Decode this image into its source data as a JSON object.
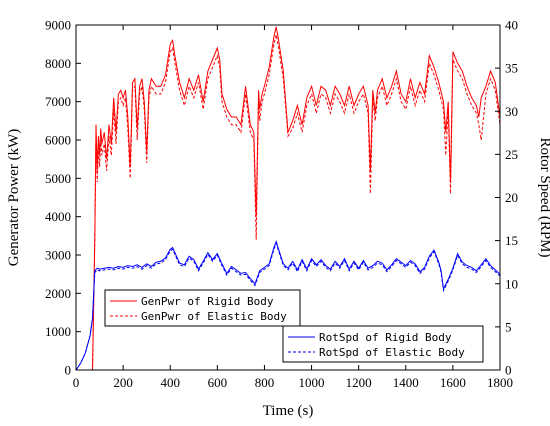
{
  "chart_data": {
    "type": "line",
    "xlabel": "Time (s)",
    "ylabel_left": "Generator Power (kW)",
    "ylabel_right": "Rotor Speed (RPM)",
    "xlim": [
      0,
      1800
    ],
    "ylim_left": [
      0,
      9000
    ],
    "ylim_right": [
      0,
      40
    ],
    "xticks": [
      "0",
      "200",
      "400",
      "600",
      "800",
      "1000",
      "1200",
      "1400",
      "1600",
      "1800"
    ],
    "yticks_left": [
      "0",
      "1000",
      "2000",
      "3000",
      "4000",
      "5000",
      "6000",
      "7000",
      "8000",
      "9000"
    ],
    "yticks_right": [
      "0",
      "5",
      "10",
      "15",
      "20",
      "25",
      "30",
      "35",
      "40"
    ],
    "grid": false,
    "colors": {
      "genpwr": "#ff0000",
      "rotspd": "#0000ff"
    },
    "legends": [
      {
        "position": "center-left",
        "entries": [
          "GenPwr of Rigid Body",
          "GenPwr of Elastic Body"
        ]
      },
      {
        "position": "bottom-right",
        "entries": [
          "RotSpd of Rigid Body",
          "RotSpd of Elastic Body"
        ]
      }
    ],
    "series": [
      {
        "name": "GenPwr of Rigid Body",
        "axis": "left",
        "color": "#ff0000",
        "dash": "solid",
        "x": [
          0,
          60,
          70,
          80,
          85,
          90,
          95,
          100,
          105,
          110,
          120,
          130,
          140,
          150,
          160,
          170,
          180,
          190,
          200,
          210,
          220,
          230,
          235,
          240,
          250,
          260,
          270,
          280,
          290,
          300,
          310,
          320,
          340,
          360,
          380,
          400,
          410,
          420,
          440,
          460,
          480,
          500,
          520,
          540,
          560,
          580,
          600,
          610,
          620,
          640,
          660,
          680,
          700,
          720,
          740,
          755,
          765,
          775,
          780,
          790,
          800,
          820,
          840,
          850,
          860,
          880,
          900,
          920,
          940,
          960,
          980,
          1000,
          1020,
          1040,
          1060,
          1080,
          1100,
          1120,
          1140,
          1160,
          1180,
          1200,
          1220,
          1240,
          1250,
          1260,
          1270,
          1280,
          1300,
          1320,
          1340,
          1360,
          1380,
          1400,
          1420,
          1440,
          1460,
          1480,
          1500,
          1520,
          1540,
          1560,
          1570,
          1580,
          1590,
          1600,
          1620,
          1640,
          1660,
          1680,
          1700,
          1710,
          1720,
          1740,
          1760,
          1780,
          1800
        ],
        "y": [
          0,
          0,
          0,
          3500,
          6400,
          5200,
          6100,
          5600,
          6300,
          5900,
          6200,
          5500,
          6400,
          5900,
          7100,
          6200,
          7200,
          7300,
          7100,
          7300,
          6600,
          5300,
          6400,
          7500,
          7600,
          6300,
          7400,
          7600,
          7000,
          5700,
          7300,
          7600,
          7400,
          7400,
          7700,
          8500,
          8600,
          8200,
          7500,
          7100,
          7600,
          7300,
          7700,
          7000,
          7800,
          8100,
          8400,
          8100,
          7200,
          6800,
          6600,
          6600,
          6400,
          7400,
          6400,
          6200,
          4000,
          7300,
          6800,
          7200,
          7400,
          7900,
          8700,
          8950,
          8600,
          7800,
          6200,
          6500,
          6900,
          6400,
          7100,
          7400,
          6900,
          7400,
          7300,
          6900,
          7400,
          7200,
          6900,
          7400,
          6900,
          7200,
          7400,
          6900,
          5200,
          7300,
          6700,
          7300,
          7600,
          7100,
          7400,
          7800,
          7200,
          7000,
          7600,
          7100,
          7500,
          7200,
          8200,
          7900,
          7500,
          7000,
          6200,
          7000,
          4900,
          8300,
          8000,
          7800,
          7400,
          7100,
          6900,
          6600,
          7100,
          7400,
          7800,
          7500,
          6600
        ]
      },
      {
        "name": "GenPwr of Elastic Body",
        "axis": "left",
        "color": "#ff0000",
        "dash": "dashed",
        "x": [
          0,
          60,
          70,
          80,
          85,
          90,
          95,
          100,
          105,
          110,
          120,
          130,
          140,
          150,
          160,
          170,
          180,
          190,
          200,
          210,
          220,
          230,
          235,
          240,
          250,
          260,
          270,
          280,
          290,
          300,
          310,
          320,
          340,
          360,
          380,
          400,
          410,
          420,
          440,
          460,
          480,
          500,
          520,
          540,
          560,
          580,
          600,
          610,
          620,
          640,
          660,
          680,
          700,
          720,
          740,
          755,
          765,
          775,
          780,
          790,
          800,
          820,
          840,
          850,
          860,
          880,
          900,
          920,
          940,
          960,
          980,
          1000,
          1020,
          1040,
          1060,
          1080,
          1100,
          1120,
          1140,
          1160,
          1180,
          1200,
          1220,
          1240,
          1250,
          1260,
          1270,
          1280,
          1300,
          1320,
          1340,
          1360,
          1380,
          1400,
          1420,
          1440,
          1460,
          1480,
          1500,
          1520,
          1540,
          1560,
          1570,
          1580,
          1590,
          1600,
          1620,
          1640,
          1660,
          1680,
          1700,
          1710,
          1720,
          1740,
          1760,
          1780,
          1800
        ],
        "y": [
          0,
          0,
          0,
          3300,
          6100,
          4900,
          5800,
          5300,
          6000,
          5600,
          5900,
          5200,
          6100,
          5600,
          6800,
          5900,
          7000,
          7100,
          6900,
          7100,
          6300,
          5000,
          6100,
          7300,
          7400,
          6000,
          7200,
          7400,
          6800,
          5400,
          7100,
          7400,
          7200,
          7200,
          7500,
          8300,
          8400,
          8000,
          7300,
          6900,
          7400,
          7100,
          7500,
          6800,
          7600,
          7900,
          8200,
          7900,
          7000,
          6600,
          6400,
          6400,
          6200,
          7200,
          6200,
          6000,
          3400,
          7100,
          6500,
          7000,
          7200,
          7700,
          8500,
          8750,
          8400,
          7600,
          6100,
          6300,
          6700,
          6200,
          6900,
          7200,
          6700,
          7200,
          7100,
          6700,
          7200,
          7000,
          6700,
          7200,
          6700,
          7000,
          7200,
          6700,
          4600,
          7100,
          6500,
          7100,
          7400,
          6900,
          7200,
          7600,
          7000,
          6800,
          7400,
          6900,
          7300,
          7000,
          8000,
          7700,
          7300,
          6800,
          5600,
          6800,
          4600,
          8100,
          7800,
          7600,
          7200,
          6900,
          6700,
          6400,
          6000,
          7200,
          7600,
          7300,
          6400
        ]
      },
      {
        "name": "RotSpd of Rigid Body",
        "axis": "right",
        "color": "#0000ff",
        "dash": "solid",
        "x": [
          0,
          20,
          40,
          60,
          70,
          80,
          90,
          100,
          120,
          140,
          160,
          180,
          200,
          220,
          240,
          260,
          280,
          300,
          320,
          340,
          360,
          380,
          400,
          410,
          420,
          440,
          460,
          480,
          500,
          520,
          540,
          560,
          580,
          600,
          620,
          640,
          660,
          680,
          700,
          720,
          740,
          760,
          780,
          800,
          820,
          840,
          850,
          860,
          880,
          900,
          920,
          940,
          960,
          980,
          1000,
          1020,
          1040,
          1060,
          1080,
          1100,
          1120,
          1140,
          1160,
          1180,
          1200,
          1220,
          1240,
          1260,
          1280,
          1300,
          1320,
          1340,
          1360,
          1380,
          1400,
          1420,
          1440,
          1460,
          1480,
          1500,
          1520,
          1540,
          1550,
          1560,
          1580,
          1600,
          1620,
          1640,
          1660,
          1680,
          1700,
          1720,
          1740,
          1760,
          1780,
          1800
        ],
        "y": [
          0,
          0.8,
          2.0,
          4.0,
          6.0,
          11.5,
          11.8,
          11.7,
          11.8,
          11.9,
          11.8,
          12.0,
          11.9,
          12.1,
          12.0,
          12.2,
          11.9,
          12.3,
          12.0,
          12.5,
          12.6,
          13.0,
          14.0,
          14.2,
          13.6,
          12.4,
          12.2,
          13.2,
          12.8,
          11.7,
          12.6,
          13.6,
          12.8,
          13.5,
          12.3,
          11.2,
          12.0,
          11.6,
          11.2,
          11.3,
          10.6,
          10.0,
          11.5,
          11.9,
          12.3,
          14.2,
          14.9,
          14.0,
          12.3,
          11.8,
          12.6,
          11.6,
          12.8,
          11.7,
          12.9,
          12.2,
          12.8,
          12.1,
          11.7,
          12.6,
          12.0,
          12.9,
          11.7,
          12.6,
          11.8,
          12.7,
          11.8,
          12.1,
          12.6,
          12.4,
          11.6,
          12.2,
          12.9,
          12.5,
          12.1,
          12.7,
          12.3,
          11.4,
          11.9,
          13.2,
          13.9,
          12.5,
          11.5,
          9.4,
          10.5,
          11.8,
          13.5,
          12.5,
          12.1,
          11.9,
          11.5,
          12.2,
          12.9,
          12.1,
          11.6,
          11.1
        ]
      },
      {
        "name": "RotSpd of Elastic Body",
        "axis": "right",
        "color": "#0000ff",
        "dash": "dashed",
        "x": [
          0,
          20,
          40,
          60,
          70,
          80,
          90,
          100,
          120,
          140,
          160,
          180,
          200,
          220,
          240,
          260,
          280,
          300,
          320,
          340,
          360,
          380,
          400,
          410,
          420,
          440,
          460,
          480,
          500,
          520,
          540,
          560,
          580,
          600,
          620,
          640,
          660,
          680,
          700,
          720,
          740,
          760,
          780,
          800,
          820,
          840,
          850,
          860,
          880,
          900,
          920,
          940,
          960,
          980,
          1000,
          1020,
          1040,
          1060,
          1080,
          1100,
          1120,
          1140,
          1160,
          1180,
          1200,
          1220,
          1240,
          1260,
          1280,
          1300,
          1320,
          1340,
          1360,
          1380,
          1400,
          1420,
          1440,
          1460,
          1480,
          1500,
          1520,
          1540,
          1550,
          1560,
          1580,
          1600,
          1620,
          1640,
          1660,
          1680,
          1700,
          1720,
          1740,
          1760,
          1780,
          1800
        ],
        "y": [
          0,
          0.8,
          2.0,
          4.0,
          6.0,
          11.3,
          11.6,
          11.5,
          11.6,
          11.7,
          11.6,
          11.8,
          11.7,
          11.9,
          11.8,
          12.0,
          11.7,
          12.1,
          11.8,
          12.3,
          12.4,
          12.8,
          13.8,
          14.0,
          13.4,
          12.2,
          12.0,
          13.0,
          12.6,
          11.5,
          12.4,
          13.4,
          12.6,
          13.3,
          12.1,
          11.0,
          11.8,
          11.4,
          11.0,
          11.1,
          10.4,
          9.8,
          11.3,
          11.7,
          12.1,
          14.0,
          14.7,
          13.8,
          12.1,
          11.6,
          12.4,
          11.4,
          12.6,
          11.5,
          12.7,
          12.0,
          12.6,
          11.9,
          11.5,
          12.4,
          11.8,
          12.7,
          11.5,
          12.4,
          11.6,
          12.5,
          11.6,
          11.9,
          12.4,
          12.2,
          11.4,
          12.0,
          12.7,
          12.3,
          11.9,
          12.5,
          12.1,
          11.2,
          11.7,
          13.0,
          13.7,
          12.3,
          11.3,
          9.2,
          10.3,
          11.6,
          13.3,
          12.3,
          11.9,
          11.7,
          11.3,
          12.0,
          12.7,
          11.9,
          11.4,
          10.9
        ]
      }
    ]
  }
}
